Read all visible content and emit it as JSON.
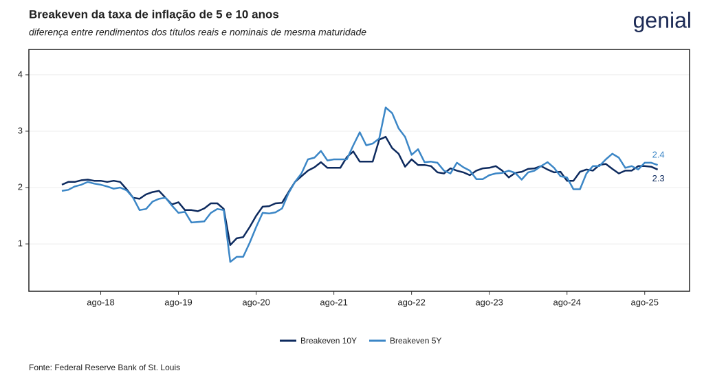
{
  "logo": "genial",
  "chart_data": {
    "type": "line",
    "title": "Breakeven da taxa de inflação de 5 e 10 anos",
    "subtitle": "diferença entre rendimentos dos títulos reais e nominais de mesma maturidade",
    "source": "Fonte: Federal Reserve Bank of St. Louis",
    "categories": [
      null,
      null,
      null,
      null,
      null,
      null,
      "ago-18",
      null,
      null,
      null,
      null,
      null,
      null,
      null,
      null,
      null,
      null,
      null,
      "ago-19",
      null,
      null,
      null,
      null,
      null,
      null,
      null,
      null,
      null,
      null,
      null,
      "ago-20",
      null,
      null,
      null,
      null,
      null,
      null,
      null,
      null,
      null,
      null,
      null,
      "ago-21",
      null,
      null,
      null,
      null,
      null,
      null,
      null,
      null,
      null,
      null,
      null,
      "ago-22",
      null,
      null,
      null,
      null,
      null,
      null,
      null,
      null,
      null,
      null,
      null,
      "ago-23",
      null,
      null,
      null,
      null,
      null,
      null,
      null,
      null,
      null,
      null,
      null,
      "ago-24",
      null,
      null,
      null,
      null,
      null,
      null,
      null,
      null,
      null,
      null,
      null,
      "ago-25",
      null,
      null
    ],
    "series": [
      {
        "name": "Breakeven 10Y",
        "color": "#0d2a5e",
        "last_label": "2.3",
        "values": [
          2.05,
          2.1,
          2.1,
          2.13,
          2.14,
          2.12,
          2.12,
          2.1,
          2.12,
          2.1,
          1.97,
          1.82,
          1.8,
          1.88,
          1.92,
          1.94,
          1.82,
          1.7,
          1.74,
          1.6,
          1.6,
          1.58,
          1.63,
          1.72,
          1.72,
          1.62,
          0.98,
          1.1,
          1.12,
          1.3,
          1.5,
          1.66,
          1.67,
          1.72,
          1.73,
          1.92,
          2.1,
          2.2,
          2.3,
          2.36,
          2.45,
          2.35,
          2.35,
          2.35,
          2.54,
          2.64,
          2.46,
          2.46,
          2.46,
          2.85,
          2.9,
          2.7,
          2.6,
          2.37,
          2.5,
          2.4,
          2.4,
          2.38,
          2.27,
          2.25,
          2.34,
          2.3,
          2.27,
          2.22,
          2.3,
          2.34,
          2.35,
          2.38,
          2.3,
          2.18,
          2.26,
          2.28,
          2.33,
          2.34,
          2.38,
          2.32,
          2.27,
          2.28,
          2.12,
          2.12,
          2.28,
          2.32,
          2.3,
          2.4,
          2.42,
          2.33,
          2.25,
          2.3,
          2.3,
          2.38,
          2.38,
          2.37,
          2.32
        ]
      },
      {
        "name": "Breakeven 5Y",
        "color": "#3b86c6",
        "last_label": "2.4",
        "values": [
          1.94,
          1.96,
          2.02,
          2.05,
          2.1,
          2.07,
          2.05,
          2.02,
          1.98,
          2.0,
          1.95,
          1.82,
          1.6,
          1.62,
          1.75,
          1.8,
          1.82,
          1.68,
          1.55,
          1.57,
          1.38,
          1.39,
          1.4,
          1.55,
          1.62,
          1.6,
          0.68,
          0.77,
          0.77,
          1.02,
          1.3,
          1.55,
          1.54,
          1.56,
          1.63,
          1.9,
          2.1,
          2.25,
          2.5,
          2.53,
          2.65,
          2.48,
          2.5,
          2.5,
          2.5,
          2.75,
          2.98,
          2.75,
          2.78,
          2.87,
          3.42,
          3.32,
          3.05,
          2.9,
          2.58,
          2.68,
          2.45,
          2.46,
          2.44,
          2.3,
          2.25,
          2.44,
          2.36,
          2.3,
          2.15,
          2.15,
          2.22,
          2.25,
          2.26,
          2.3,
          2.26,
          2.14,
          2.27,
          2.3,
          2.38,
          2.45,
          2.35,
          2.2,
          2.18,
          1.97,
          1.97,
          2.25,
          2.38,
          2.38,
          2.5,
          2.6,
          2.53,
          2.35,
          2.38,
          2.32,
          2.44,
          2.44,
          2.4
        ]
      }
    ],
    "ylim": [
      0.16,
      4.45
    ],
    "yticks": [
      1,
      2,
      3,
      4
    ],
    "grid": true,
    "legend": "bottom"
  }
}
